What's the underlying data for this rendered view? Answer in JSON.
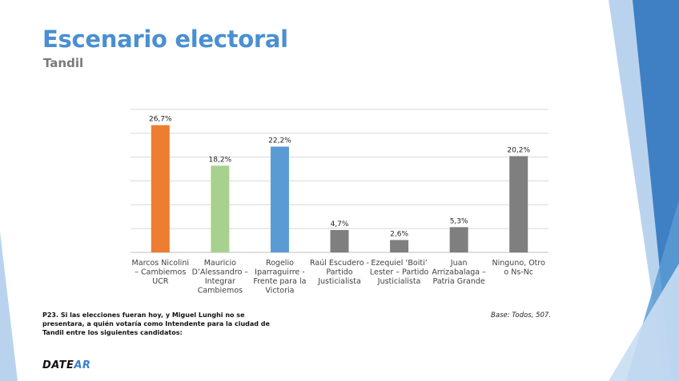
{
  "slide": {
    "title": "Escenario electoral",
    "subtitle": "Tandil",
    "question": "P23. Si las elecciones fueran hoy, y Miguel Lunghi no se presentara, a quién votaría como Intendente para la ciudad de Tandil entre los siguientes candidatos:",
    "base": "Base: Todos, 507.",
    "logo_part1": "DATE",
    "logo_part2": "AR"
  },
  "colors": {
    "title": "#4a8fd1",
    "deco_dark": "#3f7fc4",
    "deco_light": "#b9d3ee",
    "gridline": "#d9d9d9"
  },
  "chart_data": {
    "type": "bar",
    "title": "",
    "xlabel": "",
    "ylabel": "",
    "ylim": [
      0,
      30
    ],
    "grid": true,
    "legend": "none",
    "categories": [
      [
        "Marcos Nicolini",
        "– Cambiemos",
        "UCR"
      ],
      [
        "Mauricio",
        "D’Alessandro –",
        "Integrar",
        "Cambiemos"
      ],
      [
        "Rogelio",
        "Iparraguirre -",
        "Frente para la",
        "Victoria"
      ],
      [
        "Raúl Escudero -",
        "Partido",
        "Justicialista"
      ],
      [
        "Ezequiel ‘Boiti’",
        "Lester – Partido",
        "Justicialista"
      ],
      [
        "Juan",
        "Arrizabalaga –",
        "Patria Grande"
      ],
      [
        "Ninguno, Otro",
        "o Ns-Nc"
      ]
    ],
    "values": [
      26.7,
      18.2,
      22.2,
      4.7,
      2.6,
      5.3,
      20.2
    ],
    "labels": [
      "26,7%",
      "18,2%",
      "22,2%",
      "4,7%",
      "2,6%",
      "5,3%",
      "20,2%"
    ],
    "bar_colors": [
      "#ed7d31",
      "#a9d18e",
      "#5b9bd5",
      "#7f7f7f",
      "#7f7f7f",
      "#7f7f7f",
      "#7f7f7f"
    ]
  }
}
